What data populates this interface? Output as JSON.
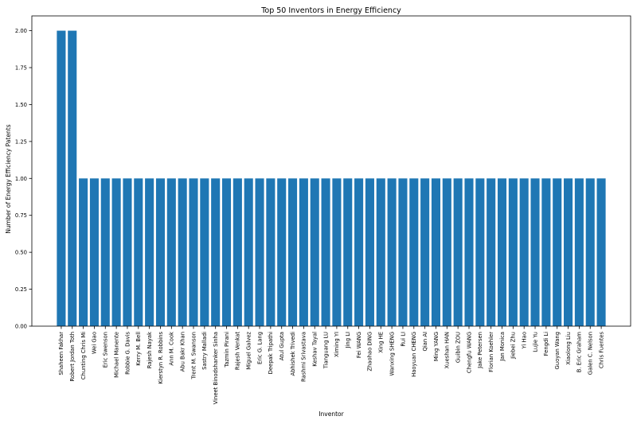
{
  "chart_data": {
    "type": "bar",
    "title": "Top 50 Inventors in Energy Efficiency",
    "xlabel": "Inventor",
    "ylabel": "Number of Energy Efficiency Patents",
    "ylim": [
      0,
      2.1
    ],
    "yticks": [
      "0.00",
      "0.25",
      "0.50",
      "0.75",
      "1.00",
      "1.25",
      "1.50",
      "1.75",
      "2.00"
    ],
    "grid": false,
    "legend": "none",
    "bar_color": "#1f77b4",
    "categories": [
      "Shaheen Fakhar",
      "Robert Jordan Toth",
      "Chunting Chris Mi",
      "Wei Gao",
      "Eric Swenson",
      "Michael Manente",
      "Robbie G. Davis",
      "Kerry M. Bell",
      "Rajesh Nayak",
      "Kierstyn R. Robbins",
      "Ann M. Cook",
      "Abu Bakr Khan",
      "Trent M. Swanson",
      "Sastry Malladi",
      "Vineet Binodshanker Sinha",
      "Tazmin Pirani",
      "Rajesh Venkat",
      "Miguel Galvez",
      "Eric G. Lang",
      "Deepak Tripathi",
      "Atul Gupta",
      "Abhishek Trivedi",
      "Rashmi Srivastava",
      "Keshav Tayal",
      "Tianguang LU",
      "Ximing YI",
      "Jing LI",
      "Fei WANG",
      "Zhaohao DING",
      "Xing HE",
      "Wanxing SHENG",
      "Rui LI",
      "Haoyuan CHENG",
      "Qian AI",
      "Ming YANG",
      "Xueshan HAN",
      "Guibin ZOU",
      "Chengfu WANG",
      "Jake Petersen",
      "Florian Koehler",
      "Jan Monica",
      "Jiebei Zhu",
      "Yi Hao",
      "Lujie Yu",
      "Fengdi Li",
      "Guoyan Wang",
      "Xiaolong Liu",
      "B. Eric Graham",
      "Galen C. Nelson",
      "Chris Fuentes"
    ],
    "values": [
      2,
      2,
      1,
      1,
      1,
      1,
      1,
      1,
      1,
      1,
      1,
      1,
      1,
      1,
      1,
      1,
      1,
      1,
      1,
      1,
      1,
      1,
      1,
      1,
      1,
      1,
      1,
      1,
      1,
      1,
      1,
      1,
      1,
      1,
      1,
      1,
      1,
      1,
      1,
      1,
      1,
      1,
      1,
      1,
      1,
      1,
      1,
      1,
      1,
      1
    ]
  }
}
